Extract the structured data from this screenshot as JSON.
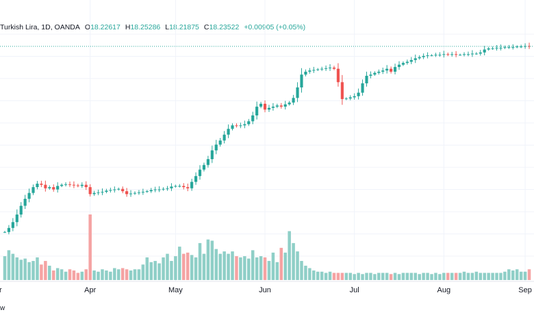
{
  "legend": {
    "symbol": "Turkish Lira, 1D, OANDA",
    "o_label": "O",
    "o_value": "18.22617",
    "h_label": "H",
    "h_value": "18.25286",
    "l_label": "L",
    "l_value": "18.21875",
    "c_label": "C",
    "c_value": "18.23522",
    "change": "+0.00905 (+0.05%)"
  },
  "bottom_text": "w",
  "colors": {
    "up": "#26a69a",
    "down": "#ef5350",
    "up_vol": "#8fcfc7",
    "down_vol": "#f5a3a3",
    "grid": "#f0f3fa"
  },
  "chart_data": {
    "type": "candlestick",
    "x_tick_labels": [
      "Apr",
      "May",
      "Jun",
      "Jul",
      "Aug",
      "Sep"
    ],
    "first_partial_label": "r",
    "last_price_line": 18.235,
    "ohlc_start": 15.05,
    "closes": [
      15.05,
      15.12,
      15.22,
      15.35,
      15.5,
      15.62,
      15.72,
      15.82,
      15.88,
      15.86,
      15.8,
      15.82,
      15.78,
      15.84,
      15.86,
      15.87,
      15.86,
      15.85,
      15.84,
      15.86,
      15.82,
      15.7,
      15.72,
      15.73,
      15.74,
      15.76,
      15.77,
      15.78,
      15.79,
      15.75,
      15.7,
      15.71,
      15.72,
      15.73,
      15.74,
      15.75,
      15.77,
      15.78,
      15.78,
      15.79,
      15.8,
      15.83,
      15.84,
      15.84,
      15.82,
      15.8,
      15.91,
      16.01,
      16.12,
      16.2,
      16.3,
      16.45,
      16.55,
      16.62,
      16.72,
      16.82,
      16.88,
      16.87,
      16.88,
      16.9,
      16.95,
      17.05,
      17.2,
      17.25,
      17.15,
      17.18,
      17.2,
      17.22,
      17.2,
      17.24,
      17.27,
      17.35,
      17.53,
      17.75,
      17.8,
      17.82,
      17.83,
      17.84,
      17.85,
      17.86,
      17.87,
      17.85,
      17.62,
      17.33,
      17.34,
      17.36,
      17.38,
      17.44,
      17.6,
      17.73,
      17.75,
      17.78,
      17.8,
      17.82,
      17.85,
      17.8,
      17.88,
      17.92,
      17.95,
      17.97,
      18.0,
      18.03,
      18.05,
      18.07,
      18.08,
      18.08,
      18.09,
      18.09,
      18.1,
      18.09,
      18.1,
      18.09,
      18.09,
      18.1,
      18.1,
      18.11,
      18.11,
      18.13,
      18.18,
      18.2,
      18.2,
      18.21,
      18.21,
      18.22,
      18.22,
      18.22,
      18.23,
      18.23,
      18.24,
      18.235
    ],
    "volumes": [
      2.0,
      2.5,
      2.2,
      1.9,
      1.7,
      1.8,
      1.5,
      1.6,
      1.9,
      1.3,
      1.6,
      1.2,
      0.8,
      1.0,
      0.9,
      0.7,
      0.9,
      0.8,
      0.6,
      0.7,
      0.9,
      5.5,
      0.8,
      0.7,
      0.9,
      0.8,
      0.7,
      1.0,
      0.9,
      1.0,
      0.9,
      0.8,
      0.9,
      0.9,
      1.3,
      1.9,
      1.5,
      1.6,
      1.4,
      1.9,
      2.2,
      1.6,
      2.0,
      2.8,
      2.2,
      2.3,
      2.1,
      1.9,
      3.1,
      2.2,
      3.4,
      3.3,
      2.6,
      2.2,
      2.4,
      2.2,
      2.4,
      2.0,
      1.9,
      2.0,
      1.8,
      2.5,
      1.9,
      2.0,
      1.9,
      1.6,
      2.3,
      1.5,
      2.7,
      2.3,
      4.1,
      3.1,
      2.4,
      1.6,
      1.2,
      1.0,
      0.8,
      0.7,
      0.7,
      0.6,
      0.7,
      0.6,
      0.6,
      0.6,
      0.6,
      0.6,
      0.5,
      0.6,
      0.5,
      0.6,
      0.6,
      0.5,
      0.6,
      0.6,
      0.6,
      0.5,
      0.6,
      0.5,
      0.6,
      0.6,
      0.6,
      0.6,
      0.5,
      0.6,
      0.6,
      0.5,
      0.6,
      0.5,
      0.6,
      0.6,
      0.6,
      0.6,
      0.6,
      0.7,
      0.6,
      0.6,
      0.7,
      0.6,
      0.6,
      0.6,
      0.6,
      0.6,
      0.6,
      0.7,
      0.9,
      0.8,
      0.9,
      0.7,
      0.7,
      0.9
    ]
  }
}
